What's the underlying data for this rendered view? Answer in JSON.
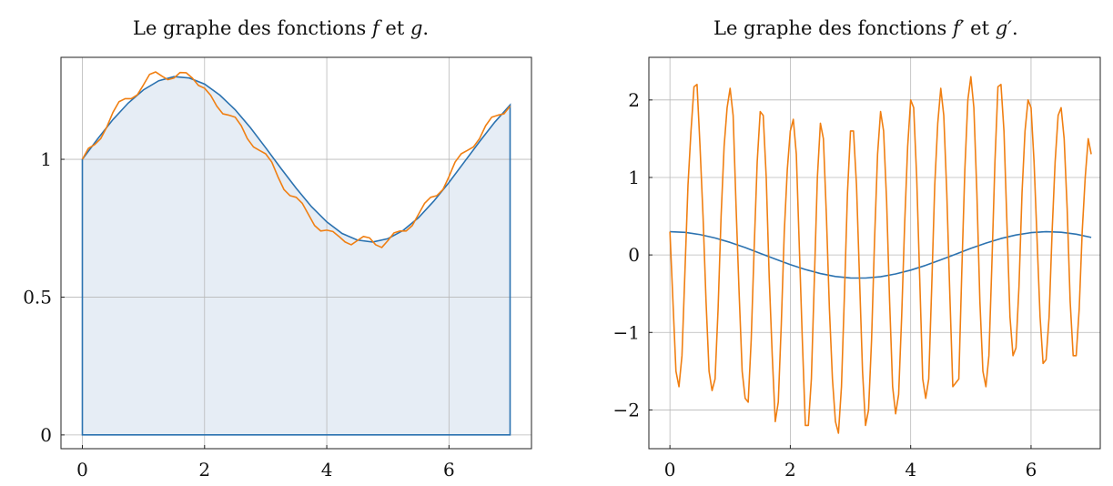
{
  "charts": [
    {
      "title_prefix": "Le graphe des fonctions",
      "f_symbol": "f",
      "conj": "et",
      "g_symbol": "g",
      "title_suffix": "."
    },
    {
      "title_prefix": "Le graphe des fonctions",
      "f_symbol": "f′",
      "conj": "et",
      "g_symbol": "g′",
      "title_suffix": "."
    }
  ],
  "colors": {
    "blue": "#2b72b0",
    "orange": "#f07f12",
    "fill": "#e6edf5",
    "grid": "#b8b8b8",
    "axis": "#222222"
  },
  "chart_data": [
    {
      "type": "line",
      "title": "Le graphe des fonctions f et g.",
      "xlim": [
        -0.35,
        7.35
      ],
      "ylim": [
        -0.05,
        1.37
      ],
      "xticks": [
        0,
        2,
        4,
        6
      ],
      "xtick_labels": [
        "0",
        "2",
        "4",
        "6"
      ],
      "yticks": [
        0,
        0.5,
        1
      ],
      "ytick_labels": [
        "0",
        "0.5",
        "1"
      ],
      "grid": true,
      "fill_under": "f",
      "series": [
        {
          "color": "blue",
          "x": [
            0,
            0.25,
            0.5,
            0.75,
            1,
            1.25,
            1.5,
            1.75,
            2,
            2.25,
            2.5,
            2.75,
            3,
            3.25,
            3.5,
            3.75,
            4,
            4.25,
            4.5,
            4.75,
            5,
            5.25,
            5.5,
            5.75,
            6,
            6.25,
            6.5,
            6.75,
            7
          ],
          "y": [
            1,
            1.074,
            1.144,
            1.204,
            1.252,
            1.285,
            1.3,
            1.295,
            1.273,
            1.233,
            1.18,
            1.115,
            1.042,
            0.967,
            0.895,
            0.828,
            0.773,
            0.731,
            0.707,
            0.7,
            0.712,
            0.742,
            0.788,
            0.848,
            0.916,
            0.99,
            1.064,
            1.135,
            1.197
          ]
        },
        {
          "color": "orange",
          "x": [
            0,
            0.1,
            0.2,
            0.3,
            0.4,
            0.5,
            0.6,
            0.7,
            0.8,
            0.9,
            1,
            1.1,
            1.2,
            1.3,
            1.4,
            1.5,
            1.6,
            1.7,
            1.8,
            1.9,
            2,
            2.1,
            2.2,
            2.3,
            2.4,
            2.5,
            2.6,
            2.7,
            2.8,
            2.9,
            3,
            3.1,
            3.2,
            3.3,
            3.4,
            3.5,
            3.6,
            3.7,
            3.8,
            3.9,
            4,
            4.1,
            4.2,
            4.3,
            4.4,
            4.5,
            4.6,
            4.7,
            4.8,
            4.9,
            5,
            5.1,
            5.2,
            5.3,
            5.4,
            5.5,
            5.6,
            5.7,
            5.8,
            5.9,
            6,
            6.1,
            6.2,
            6.3,
            6.4,
            6.5,
            6.6,
            6.7,
            6.8,
            6.9,
            7
          ],
          "y": [
            1.0,
            1.04,
            1.053,
            1.075,
            1.117,
            1.17,
            1.209,
            1.22,
            1.22,
            1.234,
            1.27,
            1.308,
            1.317,
            1.302,
            1.289,
            1.295,
            1.315,
            1.314,
            1.295,
            1.268,
            1.258,
            1.232,
            1.193,
            1.165,
            1.16,
            1.153,
            1.122,
            1.075,
            1.045,
            1.032,
            1.02,
            0.99,
            0.937,
            0.89,
            0.868,
            0.862,
            0.84,
            0.8,
            0.76,
            0.74,
            0.743,
            0.738,
            0.72,
            0.7,
            0.69,
            0.705,
            0.72,
            0.715,
            0.69,
            0.68,
            0.705,
            0.733,
            0.74,
            0.74,
            0.76,
            0.8,
            0.84,
            0.862,
            0.868,
            0.89,
            0.937,
            0.99,
            1.02,
            1.032,
            1.045,
            1.075,
            1.122,
            1.153,
            1.16,
            1.165,
            1.193
          ]
        }
      ]
    },
    {
      "type": "line",
      "title": "Le graphe des fonctions f′ et g′.",
      "xlim": [
        -0.35,
        7.15
      ],
      "ylim": [
        -2.5,
        2.55
      ],
      "xticks": [
        0,
        2,
        4,
        6
      ],
      "xtick_labels": [
        "0",
        "2",
        "4",
        "6"
      ],
      "yticks": [
        -2,
        -1,
        0,
        1,
        2
      ],
      "ytick_labels": [
        "−2",
        "−1",
        "0",
        "1",
        "2"
      ],
      "grid": true,
      "series": [
        {
          "color": "blue",
          "x": [
            0,
            0.25,
            0.5,
            0.75,
            1,
            1.25,
            1.5,
            1.75,
            2,
            2.25,
            2.5,
            2.75,
            3,
            3.25,
            3.5,
            3.75,
            4,
            4.25,
            4.5,
            4.75,
            5,
            5.25,
            5.5,
            5.75,
            6,
            6.25,
            6.5,
            6.75,
            7
          ],
          "y": [
            0.3,
            0.291,
            0.263,
            0.219,
            0.162,
            0.095,
            0.021,
            -0.053,
            -0.125,
            -0.188,
            -0.24,
            -0.278,
            -0.297,
            -0.298,
            -0.281,
            -0.245,
            -0.196,
            -0.134,
            -0.063,
            0.011,
            0.085,
            0.153,
            0.212,
            0.258,
            0.288,
            0.3,
            0.293,
            0.268,
            0.226
          ]
        },
        {
          "color": "orange",
          "x": [
            0,
            0.05,
            0.1,
            0.15,
            0.2,
            0.25,
            0.3,
            0.35,
            0.4,
            0.45,
            0.5,
            0.55,
            0.6,
            0.65,
            0.7,
            0.75,
            0.8,
            0.85,
            0.9,
            0.95,
            1,
            1.05,
            1.1,
            1.15,
            1.2,
            1.25,
            1.3,
            1.35,
            1.4,
            1.45,
            1.5,
            1.55,
            1.6,
            1.65,
            1.7,
            1.75,
            1.8,
            1.85,
            1.9,
            1.95,
            2,
            2.05,
            2.1,
            2.15,
            2.2,
            2.25,
            2.3,
            2.35,
            2.4,
            2.45,
            2.5,
            2.55,
            2.6,
            2.65,
            2.7,
            2.75,
            2.8,
            2.85,
            2.9,
            2.95,
            3,
            3.05,
            3.1,
            3.15,
            3.2,
            3.25,
            3.3,
            3.35,
            3.4,
            3.45,
            3.5,
            3.55,
            3.6,
            3.65,
            3.7,
            3.75,
            3.8,
            3.85,
            3.9,
            3.95,
            4,
            4.05,
            4.1,
            4.15,
            4.2,
            4.25,
            4.3,
            4.35,
            4.4,
            4.45,
            4.5,
            4.55,
            4.6,
            4.65,
            4.7,
            4.75,
            4.8,
            4.85,
            4.9,
            4.95,
            5,
            5.05,
            5.1,
            5.15,
            5.2,
            5.25,
            5.3,
            5.35,
            5.4,
            5.45,
            5.5,
            5.55,
            5.6,
            5.65,
            5.7,
            5.75,
            5.8,
            5.85,
            5.9,
            5.95,
            6,
            6.05,
            6.1,
            6.15,
            6.2,
            6.25,
            6.3,
            6.35,
            6.4,
            6.45,
            6.5,
            6.55,
            6.6,
            6.65,
            6.7,
            6.75,
            6.8,
            6.85,
            6.9,
            6.95,
            7
          ],
          "y": [
            0.3,
            -0.6,
            -1.5,
            -1.7,
            -1.3,
            -0.2,
            0.9,
            1.6,
            2.17,
            2.2,
            1.4,
            0.5,
            -0.6,
            -1.5,
            -1.75,
            -1.6,
            -0.7,
            0.5,
            1.4,
            1.9,
            2.15,
            1.8,
            0.6,
            -0.5,
            -1.5,
            -1.85,
            -1.9,
            -1.1,
            0.1,
            1.2,
            1.85,
            1.8,
            1.0,
            -0.3,
            -1.3,
            -2.15,
            -1.9,
            -0.9,
            0.3,
            1.1,
            1.6,
            1.75,
            1.3,
            0.1,
            -1.1,
            -2.2,
            -2.2,
            -1.6,
            -0.3,
            1.0,
            1.7,
            1.5,
            0.5,
            -0.7,
            -1.6,
            -2.15,
            -2.3,
            -1.7,
            -0.5,
            0.8,
            1.6,
            1.6,
            0.9,
            -0.3,
            -1.5,
            -2.2,
            -2.0,
            -1.1,
            0.2,
            1.3,
            1.85,
            1.6,
            0.7,
            -0.6,
            -1.7,
            -2.05,
            -1.8,
            -0.8,
            0.4,
            1.4,
            2.0,
            1.9,
            1.0,
            -0.3,
            -1.6,
            -1.85,
            -1.6,
            -0.4,
            0.9,
            1.7,
            2.15,
            1.8,
            0.8,
            -0.5,
            -1.7,
            -1.65,
            -1.6,
            -0.2,
            1.1,
            2.0,
            2.3,
            1.9,
            0.8,
            -0.6,
            -1.5,
            -1.7,
            -1.3,
            -0.1,
            1.2,
            2.17,
            2.2,
            1.6,
            0.4,
            -0.8,
            -1.3,
            -1.2,
            -0.4,
            0.8,
            1.6,
            2.0,
            1.9,
            1.2,
            0.2,
            -0.8,
            -1.4,
            -1.35,
            -0.8,
            0.3,
            1.2,
            1.8,
            1.9,
            1.5,
            0.6,
            -0.6,
            -1.3,
            -1.3,
            -0.7,
            0.3,
            1.0,
            1.5,
            1.3
          ]
        }
      ]
    }
  ]
}
